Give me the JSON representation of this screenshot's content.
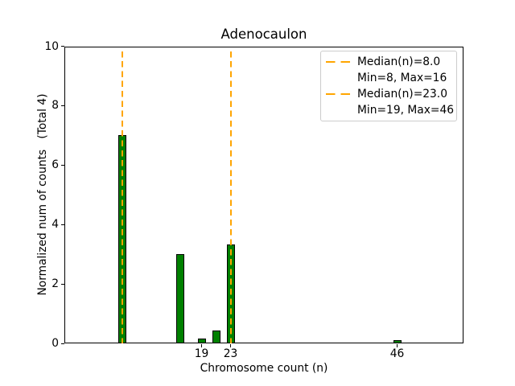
{
  "chart_data": {
    "type": "bar",
    "title": "Adenocaulon",
    "xlabel": "Chromosome count (n)",
    "ylabel": "Normalized num of counts   (Total 4)",
    "xlim": [
      0,
      55
    ],
    "ylim": [
      0,
      10
    ],
    "xticks": [
      19,
      23,
      46
    ],
    "yticks": [
      0,
      2,
      4,
      6,
      8,
      10
    ],
    "grid": false,
    "bar_color": "#008000",
    "bar_edge_color": "#000000",
    "bars": [
      {
        "n": 8,
        "value": 7.0
      },
      {
        "n": 16,
        "value": 3.0
      },
      {
        "n": 19,
        "value": 0.17
      },
      {
        "n": 21,
        "value": 0.43
      },
      {
        "n": 23,
        "value": 3.33
      },
      {
        "n": 46,
        "value": 0.11
      }
    ],
    "median_lines": [
      {
        "x": 8,
        "label": "Median(n)=8.0"
      },
      {
        "x": 23,
        "label": "Median(n)=23.0"
      }
    ],
    "median_line_color": "#FFA500",
    "median_line_style": "dashed",
    "legend": {
      "position": "upper right",
      "entries": [
        {
          "swatch": "dashed-line",
          "label": "Median(n)=8.0"
        },
        {
          "swatch": "none",
          "label": "Min=8, Max=16"
        },
        {
          "swatch": "dashed-line",
          "label": "Median(n)=23.0"
        },
        {
          "swatch": "none",
          "label": "Min=19, Max=46"
        }
      ]
    }
  }
}
